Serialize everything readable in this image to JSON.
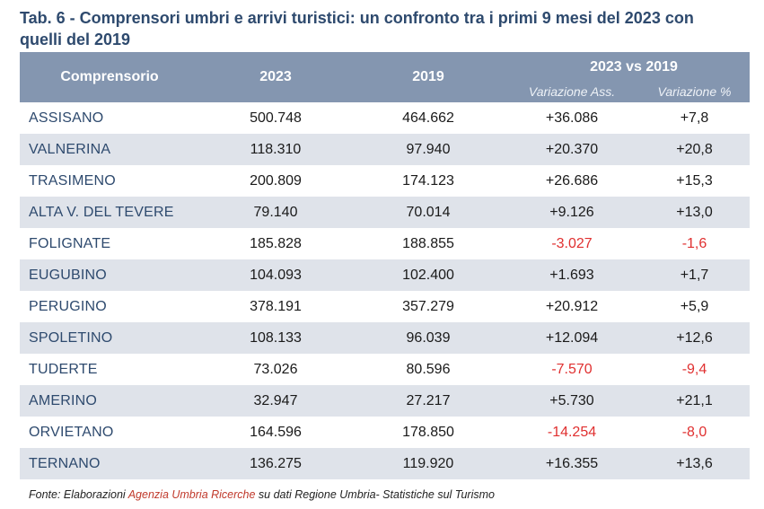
{
  "title": "Tab. 6 - Comprensori umbri e arrivi turistici: un confronto tra i primi 9 mesi del 2023 con quelli del 2019",
  "header": {
    "col_name": "Comprensorio",
    "col_2023": "2023",
    "col_2019": "2019",
    "group": "2023 vs 2019",
    "sub_abs": "Variazione Ass.",
    "sub_pct": "Variazione %"
  },
  "rows": [
    {
      "name": "ASSISANO",
      "v2023": "500.748",
      "v2019": "464.662",
      "abs": "+36.086",
      "pct": "+7,8",
      "negative": false
    },
    {
      "name": "VALNERINA",
      "v2023": "118.310",
      "v2019": "97.940",
      "abs": "+20.370",
      "pct": "+20,8",
      "negative": false
    },
    {
      "name": "TRASIMENO",
      "v2023": "200.809",
      "v2019": "174.123",
      "abs": "+26.686",
      "pct": "+15,3",
      "negative": false
    },
    {
      "name": "ALTA V. DEL TEVERE",
      "v2023": "79.140",
      "v2019": "70.014",
      "abs": "+9.126",
      "pct": "+13,0",
      "negative": false
    },
    {
      "name": "FOLIGNATE",
      "v2023": "185.828",
      "v2019": "188.855",
      "abs": "-3.027",
      "pct": "-1,6",
      "negative": true
    },
    {
      "name": "EUGUBINO",
      "v2023": "104.093",
      "v2019": "102.400",
      "abs": "+1.693",
      "pct": "+1,7",
      "negative": false
    },
    {
      "name": "PERUGINO",
      "v2023": "378.191",
      "v2019": "357.279",
      "abs": "+20.912",
      "pct": "+5,9",
      "negative": false
    },
    {
      "name": "SPOLETINO",
      "v2023": "108.133",
      "v2019": "96.039",
      "abs": "+12.094",
      "pct": "+12,6",
      "negative": false
    },
    {
      "name": "TUDERTE",
      "v2023": "73.026",
      "v2019": "80.596",
      "abs": "-7.570",
      "pct": "-9,4",
      "negative": true
    },
    {
      "name": "AMERINO",
      "v2023": "32.947",
      "v2019": "27.217",
      "abs": "+5.730",
      "pct": "+21,1",
      "negative": false
    },
    {
      "name": "ORVIETANO",
      "v2023": "164.596",
      "v2019": "178.850",
      "abs": "-14.254",
      "pct": "-8,0",
      "negative": true
    },
    {
      "name": "TERNANO",
      "v2023": "136.275",
      "v2019": "119.920",
      "abs": "+16.355",
      "pct": "+13,6",
      "negative": false
    }
  ],
  "source": {
    "prefix": "Fonte: Elaborazioni ",
    "agency": "Agenzia Umbria Ricerche",
    "suffix": " su dati Regione Umbria- Statistiche sul Turismo"
  },
  "colors": {
    "header_bg": "#8496b0",
    "alt_row_bg": "#dfe3ea",
    "title_text": "#2e4a6e",
    "negative_text": "#e03030",
    "agency_text": "#c0392b"
  }
}
